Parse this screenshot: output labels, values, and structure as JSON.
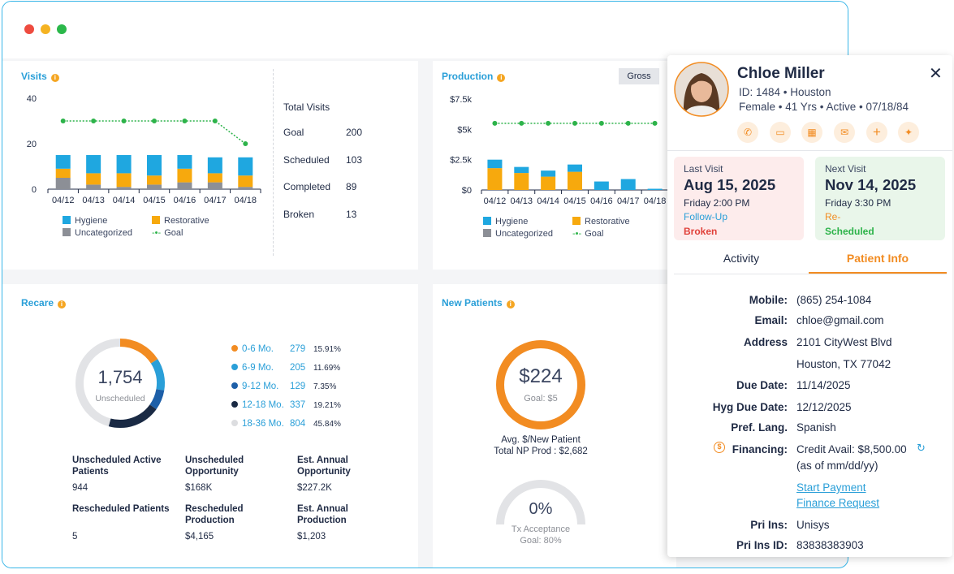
{
  "visits": {
    "title": "Visits",
    "chart_data": {
      "type": "bar",
      "categories": [
        "04/12",
        "04/13",
        "04/14",
        "04/15",
        "04/16",
        "04/17",
        "04/18"
      ],
      "series": [
        {
          "name": "Uncategorized",
          "values": [
            5,
            2,
            1,
            2,
            3,
            3,
            1
          ]
        },
        {
          "name": "Restorative",
          "values": [
            4,
            5,
            6,
            4,
            6,
            4,
            5
          ]
        },
        {
          "name": "Hygiene",
          "values": [
            6,
            8,
            8,
            9,
            6,
            7,
            8
          ]
        },
        {
          "name": "Goal",
          "values": [
            30,
            30,
            30,
            30,
            30,
            30,
            20
          ]
        }
      ],
      "ylim": [
        0,
        40
      ],
      "yticks": [
        "0",
        "20",
        "40"
      ]
    },
    "legend": {
      "hygiene": "Hygiene",
      "restorative": "Restorative",
      "uncategorized": "Uncategorized",
      "goal": "Goal"
    },
    "totals_title": "Total Visits",
    "stats": [
      {
        "label": "Goal",
        "value": "200"
      },
      {
        "label": "Scheduled",
        "value": "103"
      },
      {
        "label": "Completed",
        "value": "89"
      },
      {
        "label": "Broken",
        "value": "13"
      }
    ]
  },
  "production": {
    "title": "Production",
    "toggle": "Gross",
    "chart_data": {
      "type": "bar",
      "categories": [
        "04/12",
        "04/13",
        "04/14",
        "04/15",
        "04/16",
        "04/17",
        "04/18"
      ],
      "series": [
        {
          "name": "Uncategorized",
          "values": [
            0,
            0,
            0,
            0,
            0,
            0,
            0
          ]
        },
        {
          "name": "Restorative",
          "values": [
            1800,
            1400,
            1100,
            1500,
            0,
            0,
            0
          ]
        },
        {
          "name": "Hygiene",
          "values": [
            700,
            500,
            500,
            600,
            700,
            900,
            100
          ]
        },
        {
          "name": "Goal",
          "values": [
            5500,
            5500,
            5500,
            5500,
            5500,
            5500,
            5500
          ]
        }
      ],
      "ylim": [
        0,
        7500
      ],
      "yticks": [
        "$0",
        "$2.5k",
        "$5k",
        "$7.5k"
      ]
    },
    "legend": {
      "hygiene": "Hygiene",
      "restorative": "Restorative",
      "uncategorized": "Uncategorized",
      "goal": "Goal"
    }
  },
  "recare": {
    "title": "Recare",
    "center_value": "1,754",
    "center_label": "Unscheduled",
    "chart_data": {
      "type": "pie",
      "categories": [
        "0-6 Mo.",
        "6-9 Mo.",
        "9-12 Mo.",
        "12-18 Mo.",
        "18-36 Mo."
      ],
      "values": [
        279,
        205,
        129,
        337,
        804
      ]
    },
    "items": [
      {
        "label": "0-6 Mo.",
        "count": "279",
        "pct": "15.91%",
        "color": "#f28c22"
      },
      {
        "label": "6-9 Mo.",
        "count": "205",
        "pct": "11.69%",
        "color": "#2a9fd8"
      },
      {
        "label": "9-12 Mo.",
        "count": "129",
        "pct": "7.35%",
        "color": "#1d5fa8"
      },
      {
        "label": "12-18 Mo.",
        "count": "337",
        "pct": "19.21%",
        "color": "#1a2a44"
      },
      {
        "label": "18-36 Mo.",
        "count": "804",
        "pct": "45.84%",
        "color": "#e2e3e6"
      }
    ],
    "metrics": [
      {
        "label": "Unscheduled Active Patients",
        "value": "944"
      },
      {
        "label": "Unscheduled Opportunity",
        "value": "$168K"
      },
      {
        "label": "Est. Annual Opportunity",
        "value": "$227.2K"
      },
      {
        "label": "Rescheduled Patients",
        "value": "5"
      },
      {
        "label": "Rescheduled Production",
        "value": "$4,165"
      },
      {
        "label": "Est. Annual Production",
        "value": "$1,203"
      }
    ]
  },
  "new_patients": {
    "title": "New Patients",
    "avg_value": "$224",
    "avg_goal": "Goal: $5",
    "avg_label": "Avg. $/New Patient",
    "total_label": "Total NP Prod : $2,682",
    "tx_value": "0%",
    "tx_label": "Tx Acceptance",
    "tx_goal": "Goal: 80%",
    "tx_fraction": 0
  },
  "patient": {
    "name": "Chloe Miller",
    "id_line": "ID: 1484 • Houston",
    "demo_line": "Female • 41 Yrs • Active • 07/18/84",
    "last_visit": {
      "heading": "Last Visit",
      "date": "Aug 15, 2025",
      "time": "Friday 2:00 PM",
      "type": "Follow-Up",
      "status": "Broken"
    },
    "next_visit": {
      "heading": "Next Visit",
      "date": "Nov 14, 2025",
      "time": "Friday 3:30 PM",
      "type": "Re-",
      "status": "Scheduled"
    },
    "tabs": [
      "Activity",
      "Patient Info"
    ],
    "info": [
      {
        "label": "Mobile:",
        "value": "(865) 254-1084"
      },
      {
        "label": "Email:",
        "value": "chloe@gmail.com"
      },
      {
        "label": "Address",
        "value": "2101 CityWest Blvd"
      },
      {
        "label": "",
        "value": "Houston, TX 77042"
      },
      {
        "label": "Due Date:",
        "value": "11/14/2025"
      },
      {
        "label": "Hyg Due Date:",
        "value": "12/12/2025"
      },
      {
        "label": "Pref. Lang.",
        "value": "Spanish"
      },
      {
        "label": "Financing:",
        "value": "Credit Avail: $8,500.00"
      }
    ],
    "financing_note": "(as of mm/dd/yy)",
    "links": [
      "Start Payment",
      "Finance Request"
    ],
    "ins": [
      {
        "label": "Pri Ins:",
        "value": "Unisys"
      },
      {
        "label": "Pri Ins ID:",
        "value": "83838383903"
      }
    ]
  },
  "colors": {
    "hygiene": "#1fa7e0",
    "restorative": "#f7a90d",
    "uncategorized": "#8c8f96",
    "goal": "#2db34a",
    "accent": "#f28c22"
  }
}
